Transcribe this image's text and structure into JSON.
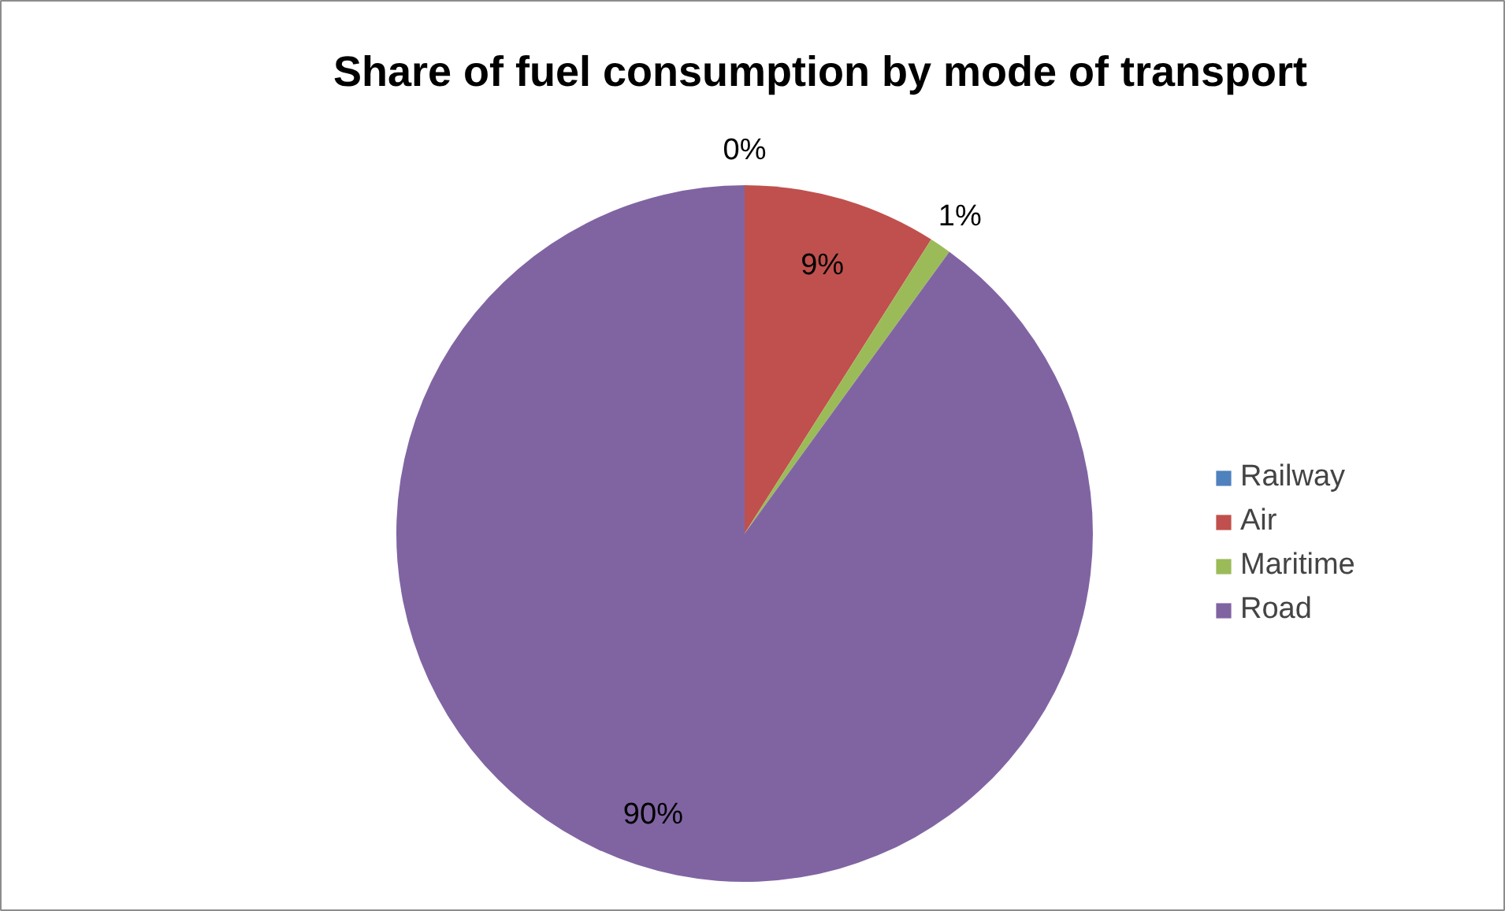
{
  "chart_data": {
    "type": "pie",
    "title": "Share of fuel consumption by mode of transport",
    "categories": [
      "Railway",
      "Air",
      "Maritime",
      "Road"
    ],
    "values": [
      0,
      9,
      1,
      90
    ],
    "colors": [
      "#4f81bd",
      "#c0504d",
      "#9bbb59",
      "#8064a2"
    ],
    "value_labels": [
      "0%",
      "9%",
      "1%",
      "90%"
    ],
    "legend": "right"
  }
}
